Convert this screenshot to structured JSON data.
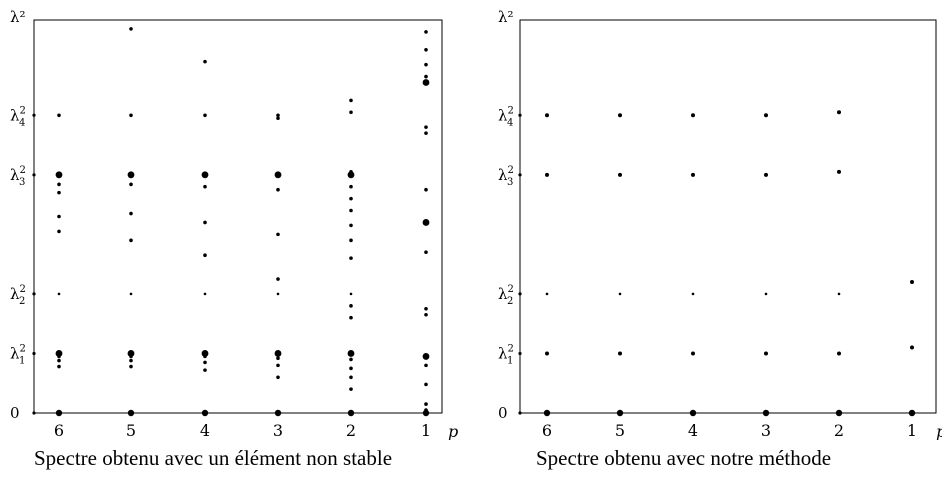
{
  "chart_data": [
    {
      "type": "scatter",
      "caption": "Spectre obtenu avec un élément non stable",
      "y_axis_label": "λ²",
      "x_axis_label": "p",
      "x_ticks": [
        6,
        5,
        4,
        3,
        2,
        1
      ],
      "y_ticks": [
        {
          "label": "0",
          "value": 0
        },
        {
          "label": "λ₁²",
          "value": 1
        },
        {
          "label": "λ₂²",
          "value": 2
        },
        {
          "label": "λ₃²",
          "value": 4
        },
        {
          "label": "λ₄²",
          "value": 5
        }
      ],
      "ylim": [
        0,
        6.6
      ],
      "points": [
        {
          "p": 6,
          "values": [
            0,
            1,
            0.95,
            0.88,
            0.78,
            2,
            3.05,
            3.3,
            3.7,
            3.84,
            3.98,
            4,
            5
          ]
        },
        {
          "p": 5,
          "values": [
            0,
            1,
            0.95,
            0.88,
            0.78,
            2,
            2.9,
            3.35,
            3.84,
            4,
            5,
            6.45
          ]
        },
        {
          "p": 4,
          "values": [
            0,
            1,
            0.95,
            0.85,
            0.72,
            2,
            2.65,
            3.2,
            3.8,
            4,
            5,
            5.9
          ]
        },
        {
          "p": 3,
          "values": [
            0,
            1,
            0.92,
            0.8,
            0.6,
            2,
            2.25,
            3,
            3.75,
            4,
            4.95,
            5
          ]
        },
        {
          "p": 2,
          "values": [
            0,
            1,
            0.9,
            0.75,
            0.6,
            0.4,
            1.6,
            1.8,
            2,
            2.6,
            2.9,
            3.15,
            3.4,
            3.6,
            3.8,
            4,
            4.05,
            5.05,
            5.25
          ]
        },
        {
          "p": 1,
          "values": [
            0,
            0.05,
            0.15,
            0.48,
            0.8,
            0.95,
            1.65,
            1.75,
            2.7,
            3.2,
            3.75,
            4.7,
            4.8,
            5.55,
            5.65,
            5.85,
            6.1,
            6.4
          ]
        }
      ]
    },
    {
      "type": "scatter",
      "caption": "Spectre obtenu avec notre méthode",
      "y_axis_label": "λ²",
      "x_axis_label": "p",
      "x_ticks": [
        6,
        5,
        4,
        3,
        2,
        1
      ],
      "y_ticks": [
        {
          "label": "0",
          "value": 0
        },
        {
          "label": "λ₁²",
          "value": 1
        },
        {
          "label": "λ₂²",
          "value": 2
        },
        {
          "label": "λ₃²",
          "value": 4
        },
        {
          "label": "λ₄²",
          "value": 5
        }
      ],
      "ylim": [
        0,
        6.6
      ],
      "points": [
        {
          "p": 6,
          "values": [
            0,
            1,
            2,
            4,
            5
          ]
        },
        {
          "p": 5,
          "values": [
            0,
            1,
            2,
            4,
            5
          ]
        },
        {
          "p": 4,
          "values": [
            0,
            1,
            2,
            4,
            5
          ]
        },
        {
          "p": 3,
          "values": [
            0,
            1,
            2,
            4,
            5
          ]
        },
        {
          "p": 2,
          "values": [
            0,
            1,
            2,
            4.05,
            5.05
          ]
        },
        {
          "p": 1,
          "values": [
            0,
            1.1,
            2.2
          ]
        }
      ]
    }
  ]
}
